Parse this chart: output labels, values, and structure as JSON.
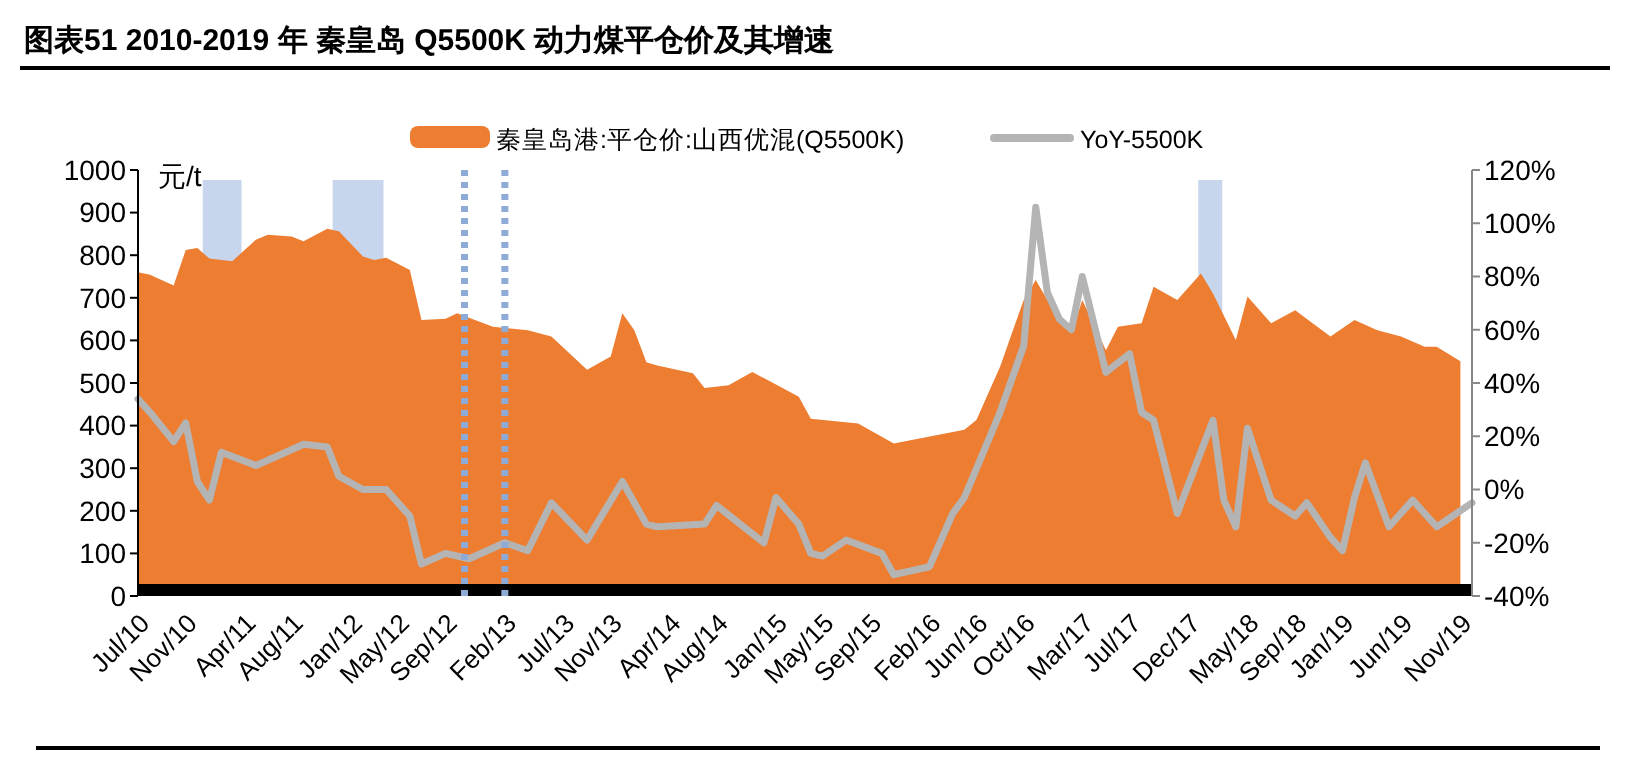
{
  "chart_data": {
    "type": "area",
    "title": "图表51    2010-2019 年 秦皇岛 Q5500K 动力煤平仓价及其增速",
    "ylabel": "元/t",
    "legend": "top",
    "xlim": [
      "2010-07",
      "2019-12"
    ],
    "xticks": [
      {
        "value": "2010-07",
        "label": "Jul/10"
      },
      {
        "value": "2010-11",
        "label": "Nov/10"
      },
      {
        "value": "2011-04",
        "label": "Apr/11"
      },
      {
        "value": "2011-08",
        "label": "Aug/11"
      },
      {
        "value": "2012-01",
        "label": "Jan/12"
      },
      {
        "value": "2012-05",
        "label": "May/12"
      },
      {
        "value": "2012-09",
        "label": "Sep/12"
      },
      {
        "value": "2013-02",
        "label": "Feb/13"
      },
      {
        "value": "2013-07",
        "label": "Jul/13"
      },
      {
        "value": "2013-11",
        "label": "Nov/13"
      },
      {
        "value": "2014-04",
        "label": "Apr/14"
      },
      {
        "value": "2014-08",
        "label": "Aug/14"
      },
      {
        "value": "2015-01",
        "label": "Jan/15"
      },
      {
        "value": "2015-05",
        "label": "May/15"
      },
      {
        "value": "2015-09",
        "label": "Sep/15"
      },
      {
        "value": "2016-02",
        "label": "Feb/16"
      },
      {
        "value": "2016-06",
        "label": "Jun/16"
      },
      {
        "value": "2016-10",
        "label": "Oct/16"
      },
      {
        "value": "2017-03",
        "label": "Mar/17"
      },
      {
        "value": "2017-07",
        "label": "Jul/17"
      },
      {
        "value": "2017-12",
        "label": "Dec/17"
      },
      {
        "value": "2018-05",
        "label": "May/18"
      },
      {
        "value": "2018-09",
        "label": "Sep/18"
      },
      {
        "value": "2019-01",
        "label": "Jan/19"
      },
      {
        "value": "2019-06",
        "label": "Jun/19"
      },
      {
        "value": "2019-11",
        "label": "Nov/19"
      }
    ],
    "ylim": [
      0,
      1000
    ],
    "yticks": [
      0,
      100,
      200,
      300,
      400,
      500,
      600,
      700,
      800,
      900,
      1000
    ],
    "y2lim": [
      -40,
      120
    ],
    "y2ticks": [
      {
        "value": -40,
        "label": "-40%"
      },
      {
        "value": -20,
        "label": "-20%"
      },
      {
        "value": 0,
        "label": "0%"
      },
      {
        "value": 20,
        "label": "20%"
      },
      {
        "value": 40,
        "label": "40%"
      },
      {
        "value": 60,
        "label": "60%"
      },
      {
        "value": 80,
        "label": "80%"
      },
      {
        "value": 100,
        "label": "100%"
      },
      {
        "value": 120,
        "label": "120%"
      }
    ],
    "series": [
      {
        "name": "秦皇岛港:平仓价:山西优混(Q5500K)",
        "type": "area",
        "color": "#ed7d31",
        "x": [
          "2010-07",
          "2010-08",
          "2010-10",
          "2010-11",
          "2010-12",
          "2011-01",
          "2011-03",
          "2011-05",
          "2011-06",
          "2011-08",
          "2011-09",
          "2011-11",
          "2011-12",
          "2012-02",
          "2012-03",
          "2012-04",
          "2012-06",
          "2012-07",
          "2012-09",
          "2012-10",
          "2013-01",
          "2013-04",
          "2013-06",
          "2013-09",
          "2013-11",
          "2013-12",
          "2014-01",
          "2014-02",
          "2014-03",
          "2014-06",
          "2014-07",
          "2014-09",
          "2014-11",
          "2015-03",
          "2015-04",
          "2015-08",
          "2015-11",
          "2016-05",
          "2016-06",
          "2016-08",
          "2016-10",
          "2016-11",
          "2016-12",
          "2017-02",
          "2017-03",
          "2017-05",
          "2017-06",
          "2017-08",
          "2017-09",
          "2017-11",
          "2018-01",
          "2018-02",
          "2018-04",
          "2018-05",
          "2018-07",
          "2018-09",
          "2018-12",
          "2019-02",
          "2019-04",
          "2019-06",
          "2019-08",
          "2019-09",
          "2019-11"
        ],
        "values": [
          760,
          754,
          729,
          812,
          817,
          792,
          786,
          836,
          848,
          844,
          833,
          862,
          856,
          797,
          789,
          794,
          765,
          648,
          651,
          664,
          632,
          624,
          609,
          531,
          562,
          664,
          624,
          549,
          541,
          523,
          488,
          495,
          526,
          468,
          416,
          405,
          358,
          390,
          413,
          538,
          695,
          742,
          695,
          617,
          695,
          577,
          632,
          640,
          726,
          695,
          757,
          710,
          601,
          703,
          640,
          671,
          609,
          648,
          624,
          609,
          585,
          585,
          551
        ]
      },
      {
        "name": "YoY-5500K",
        "type": "line",
        "axis": "y2",
        "color": "#b4b4b4",
        "x": [
          "2010-07",
          "2010-08",
          "2010-10",
          "2010-11",
          "2010-12",
          "2011-01",
          "2011-02",
          "2011-05",
          "2011-06",
          "2011-09",
          "2011-11",
          "2011-12",
          "2012-02",
          "2012-04",
          "2012-06",
          "2012-07",
          "2012-09",
          "2012-11",
          "2013-02",
          "2013-04",
          "2013-06",
          "2013-09",
          "2013-12",
          "2014-02",
          "2014-03",
          "2014-07",
          "2014-08",
          "2014-12",
          "2015-01",
          "2015-03",
          "2015-04",
          "2015-05",
          "2015-07",
          "2015-10",
          "2015-11",
          "2016-02",
          "2016-04",
          "2016-05",
          "2016-08",
          "2016-10",
          "2016-11",
          "2016-12",
          "2017-01",
          "2017-02",
          "2017-03",
          "2017-05",
          "2017-07",
          "2017-08",
          "2017-09",
          "2017-11",
          "2018-02",
          "2018-03",
          "2018-04",
          "2018-05",
          "2018-07",
          "2018-09",
          "2018-10",
          "2018-12",
          "2019-01",
          "2019-02",
          "2019-03",
          "2019-05",
          "2019-07",
          "2019-09",
          "2019-12"
        ],
        "values": [
          34,
          29,
          18,
          25,
          3,
          -4,
          14,
          9,
          11,
          17,
          16,
          5,
          0,
          0,
          -10,
          -28,
          -24,
          -26,
          -20,
          -23,
          -5,
          -19,
          3,
          -13,
          -14,
          -13,
          -6,
          -20,
          -3,
          -13,
          -24,
          -25,
          -19,
          -24,
          -32,
          -29,
          -9,
          -3,
          29,
          54,
          106,
          74,
          64,
          60,
          80,
          44,
          51,
          29,
          26,
          -9,
          26,
          -4,
          -14,
          23,
          -4,
          -10,
          -5,
          -18,
          -23,
          -3,
          10,
          -14,
          -4,
          -14,
          -5
        ]
      }
    ],
    "bands": [
      {
        "axis": "x",
        "from": "2010-12-15",
        "to": "2011-03-25",
        "color": "#b4c7e7"
      },
      {
        "axis": "x",
        "from": "2011-11-15",
        "to": "2012-03-25",
        "color": "#b4c7e7"
      },
      {
        "axis": "x",
        "from": "2017-12-25",
        "to": "2018-02-25",
        "color": "#b4c7e7"
      }
    ],
    "ref_lines": [
      {
        "axis": "x",
        "value": "2012-10-20",
        "color": "#8eaad6",
        "line_style": "dotted"
      },
      {
        "axis": "x",
        "value": "2013-02-01",
        "color": "#8eaad6",
        "line_style": "dotted"
      }
    ]
  }
}
